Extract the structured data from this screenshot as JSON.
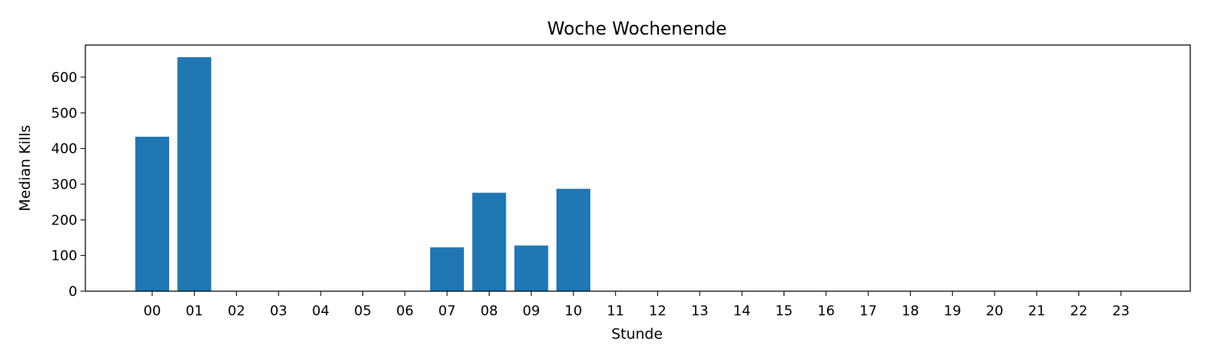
{
  "chart_data": {
    "type": "bar",
    "title": "Woche Wochenende",
    "xlabel": "Stunde",
    "ylabel": "Median Kills",
    "categories": [
      "00",
      "01",
      "02",
      "03",
      "04",
      "05",
      "06",
      "07",
      "08",
      "09",
      "10",
      "11",
      "12",
      "13",
      "14",
      "15",
      "16",
      "17",
      "18",
      "19",
      "20",
      "21",
      "22",
      "23"
    ],
    "values": [
      433,
      656,
      0,
      0,
      0,
      0,
      0,
      123,
      276,
      128,
      287,
      0,
      0,
      0,
      0,
      0,
      0,
      0,
      0,
      0,
      0,
      0,
      0,
      0
    ],
    "ylim": [
      0,
      690
    ],
    "yticks": [
      0,
      100,
      200,
      300,
      400,
      500,
      600
    ],
    "bar_color": "#1f77b4",
    "grid": false,
    "legend": "none"
  }
}
